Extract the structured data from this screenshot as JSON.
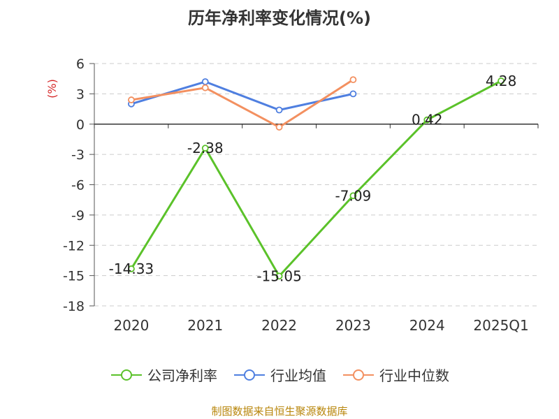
{
  "chart_data": {
    "type": "line",
    "title": "历年净利率变化情况(%)",
    "ylabel": "(%)",
    "categories": [
      "2020",
      "2021",
      "2022",
      "2023",
      "2024",
      "2025Q1"
    ],
    "ylim": [
      -18,
      6
    ],
    "yticks": [
      6,
      3,
      0,
      -3,
      -6,
      -9,
      -12,
      -15,
      -18
    ],
    "grid": true,
    "legend_position": "bottom",
    "series": [
      {
        "name": "公司净利率",
        "color": "#5bc22a",
        "values": [
          -14.33,
          -2.38,
          -15.05,
          -7.09,
          0.42,
          4.28
        ],
        "labels": [
          "-14.33",
          "-2.38",
          "-15.05",
          "-7.09",
          "0.42",
          "4.28"
        ]
      },
      {
        "name": "行业均值",
        "color": "#4f7fe0",
        "values": [
          2.0,
          4.2,
          1.4,
          3.0,
          null,
          null
        ]
      },
      {
        "name": "行业中位数",
        "color": "#f39060",
        "values": [
          2.4,
          3.6,
          -0.3,
          4.4,
          null,
          null
        ]
      }
    ]
  },
  "source": "制图数据来自恒生聚源数据库"
}
